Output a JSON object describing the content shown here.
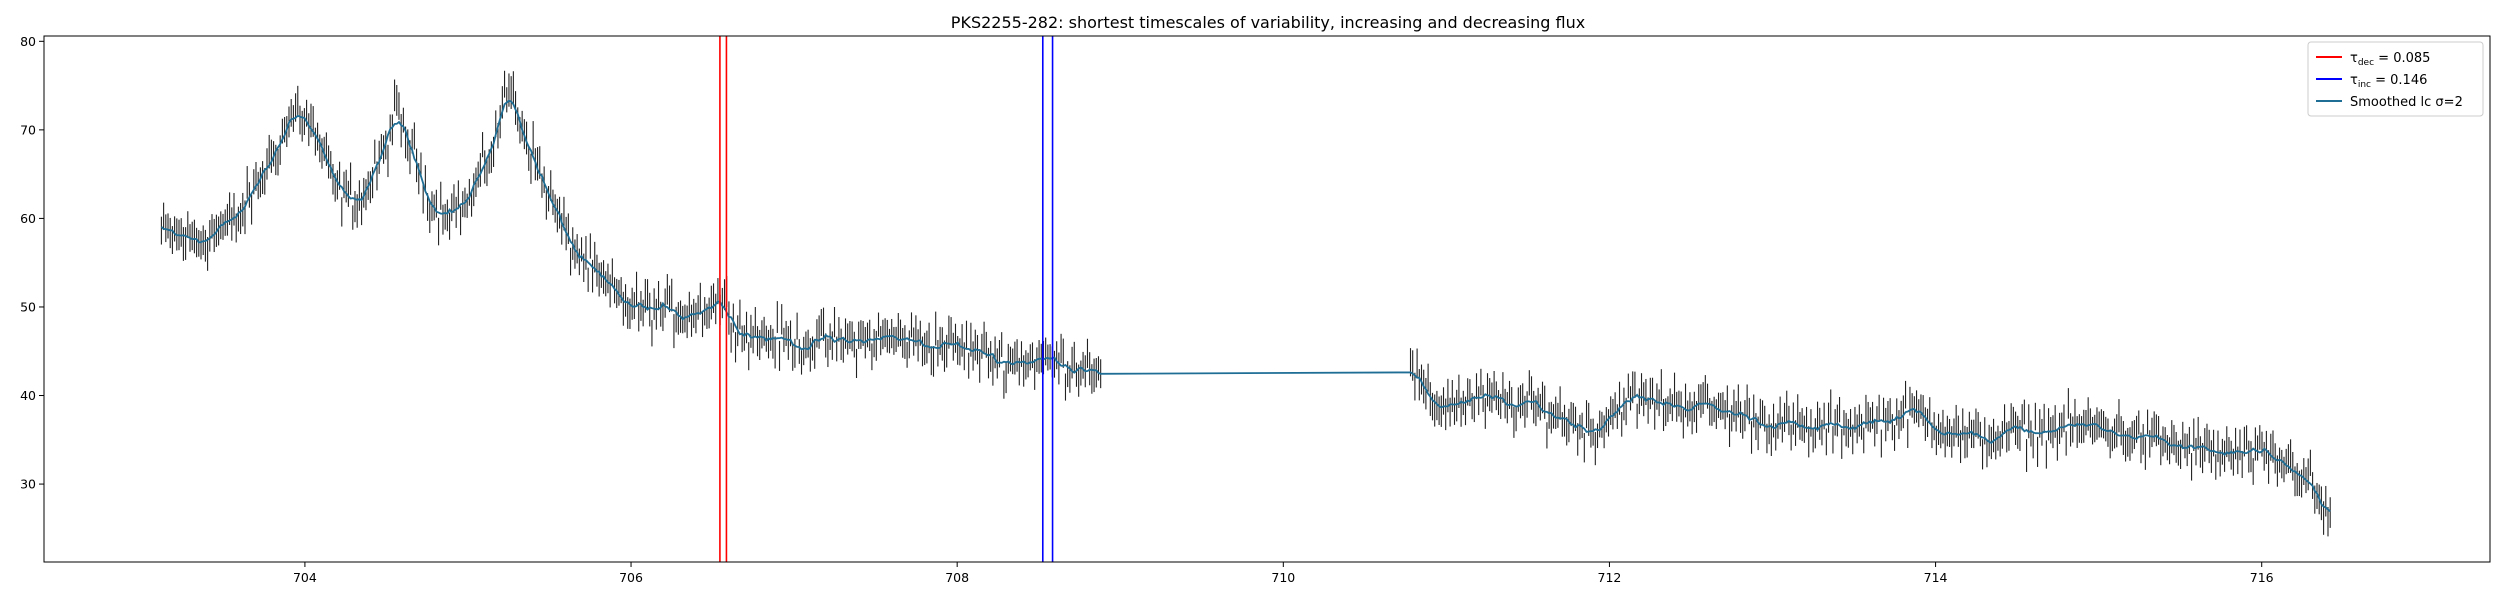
{
  "chart_data": {
    "type": "line",
    "title": "PKS2255-282: shortest timescales of variability, increasing and decreasing flux",
    "xlabel": "",
    "ylabel": "",
    "xlim": [
      702.4,
      717.4
    ],
    "ylim": [
      21.2,
      80.6
    ],
    "xticks": [
      704,
      706,
      708,
      710,
      712,
      714,
      716
    ],
    "yticks": [
      30,
      40,
      50,
      60,
      70,
      80
    ],
    "grid": false,
    "legend_position": "top-right",
    "legend": [
      {
        "id": "tau_dec",
        "symbol": "τ",
        "sub": "dec",
        "text": " = 0.085",
        "color": "#ff0000"
      },
      {
        "id": "tau_inc",
        "symbol": "τ",
        "sub": "inc",
        "text": " = 0.146",
        "color": "#0000ff"
      },
      {
        "id": "smooth",
        "text": "Smoothed lc σ=2",
        "color": "#1f6e96"
      }
    ],
    "vlines": [
      {
        "x": 706.545,
        "color": "#ff0000"
      },
      {
        "x": 706.585,
        "color": "#ff0000"
      },
      {
        "x": 708.525,
        "color": "#0000ff"
      },
      {
        "x": 708.585,
        "color": "#0000ff"
      }
    ],
    "trend": [
      [
        703.1,
        58.5
      ],
      [
        703.35,
        57.5
      ],
      [
        703.6,
        60
      ],
      [
        703.8,
        67
      ],
      [
        703.95,
        72.5
      ],
      [
        704.05,
        70
      ],
      [
        704.2,
        63
      ],
      [
        704.35,
        62
      ],
      [
        704.5,
        68
      ],
      [
        704.55,
        72
      ],
      [
        704.65,
        68
      ],
      [
        704.8,
        61
      ],
      [
        705.0,
        61.5
      ],
      [
        705.15,
        68
      ],
      [
        705.25,
        75
      ],
      [
        705.4,
        67
      ],
      [
        705.6,
        58
      ],
      [
        705.8,
        53
      ],
      [
        706.0,
        50
      ],
      [
        706.2,
        49.5
      ],
      [
        706.4,
        49.5
      ],
      [
        706.55,
        51
      ],
      [
        706.7,
        47
      ],
      [
        707.0,
        46
      ],
      [
        707.3,
        46
      ],
      [
        707.6,
        46.5
      ],
      [
        708.0,
        45.5
      ],
      [
        708.3,
        44
      ],
      [
        708.55,
        44
      ],
      [
        708.7,
        43.5
      ],
      [
        708.85,
        43.5
      ],
      [
        710.8,
        42.5
      ],
      [
        710.9,
        39
      ],
      [
        711.2,
        39.5
      ],
      [
        711.6,
        38.5
      ],
      [
        711.9,
        36
      ],
      [
        712.1,
        39.5
      ],
      [
        712.5,
        39
      ],
      [
        712.9,
        37.5
      ],
      [
        713.2,
        36
      ],
      [
        713.6,
        37
      ],
      [
        713.9,
        38
      ],
      [
        714.2,
        35
      ],
      [
        714.6,
        36
      ],
      [
        715.0,
        36.5
      ],
      [
        715.3,
        35
      ],
      [
        715.7,
        33.5
      ],
      [
        716.0,
        33
      ],
      [
        716.2,
        32
      ],
      [
        716.3,
        30
      ],
      [
        716.4,
        26
      ]
    ],
    "gap": [
      708.88,
      710.78
    ],
    "errorbar_half_height": 1.6,
    "noise_amplitude": 2.2
  }
}
